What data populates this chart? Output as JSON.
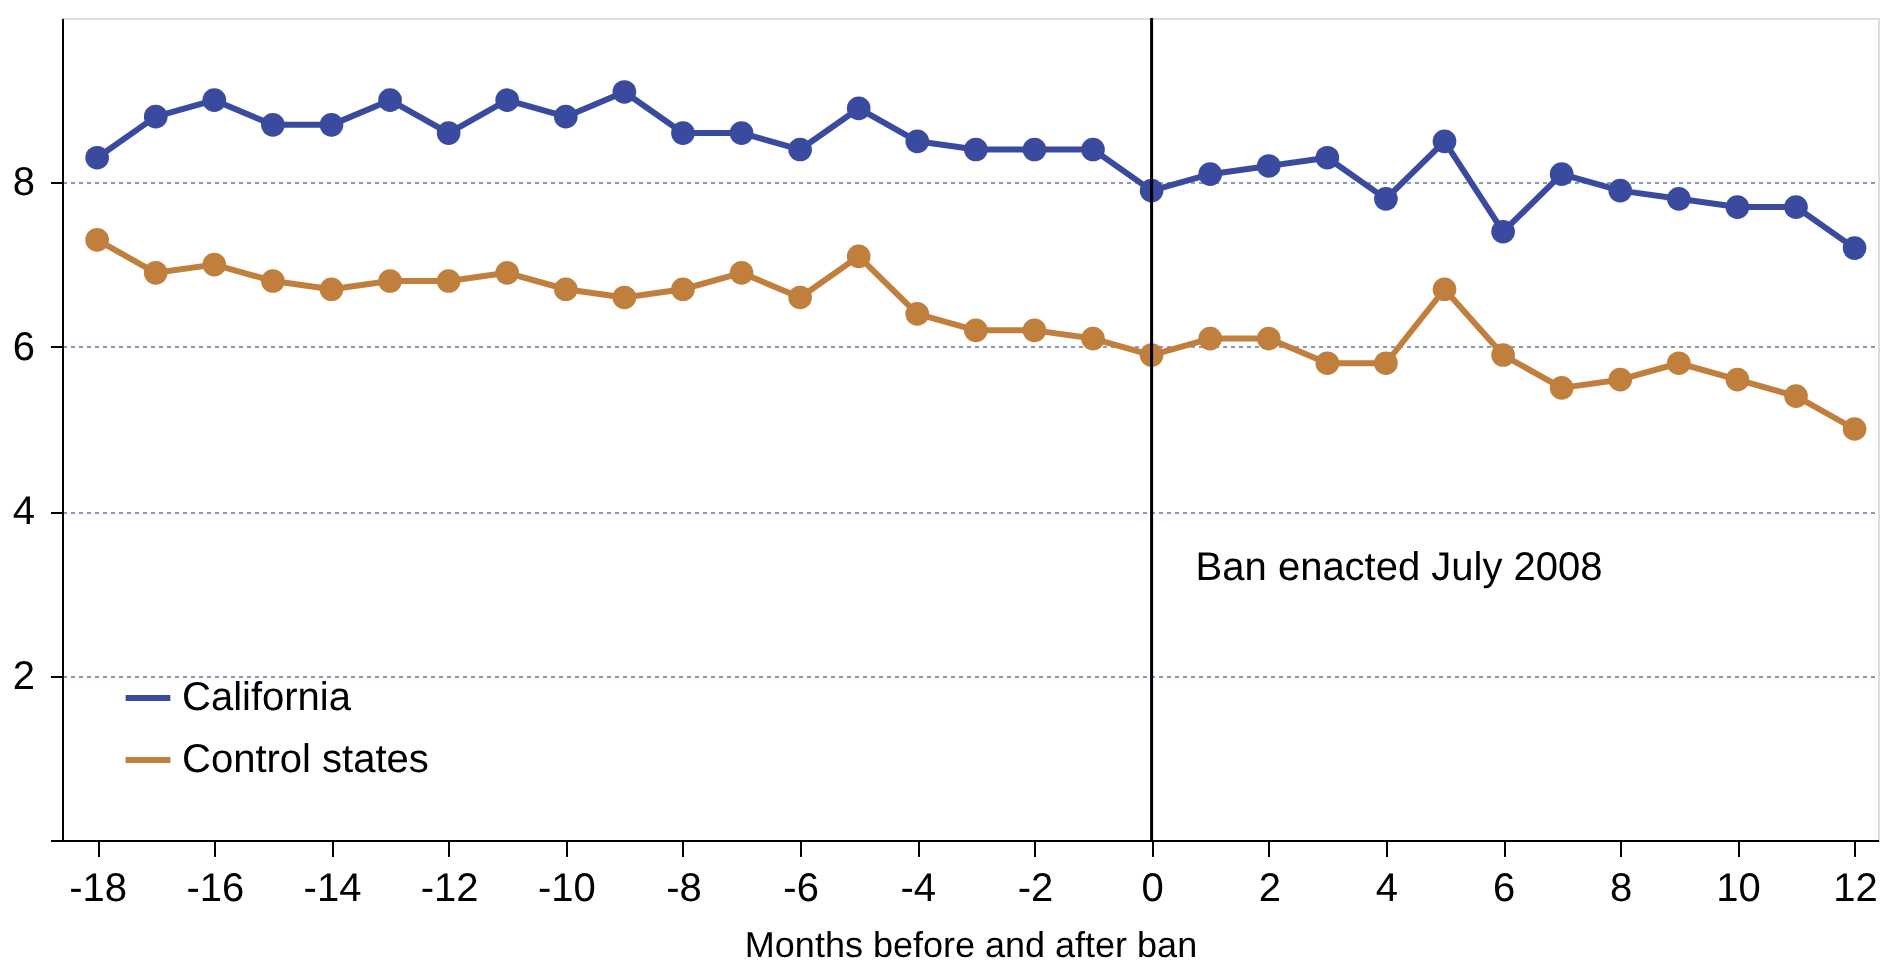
{
  "chart_data": {
    "type": "line",
    "xlabel": "Months before and after ban",
    "x": [
      -18,
      -17,
      -16,
      -15,
      -14,
      -13,
      -12,
      -11,
      -10,
      -9,
      -8,
      -7,
      -6,
      -5,
      -4,
      -3,
      -2,
      -1,
      0,
      1,
      2,
      3,
      4,
      5,
      6,
      7,
      8,
      9,
      10,
      11,
      12
    ],
    "series": [
      {
        "name": "California",
        "color": "#3a4a9e",
        "values": [
          8.3,
          8.8,
          9.0,
          8.7,
          8.7,
          9.0,
          8.6,
          9.0,
          8.8,
          9.1,
          8.6,
          8.6,
          8.4,
          8.9,
          8.5,
          8.4,
          8.4,
          8.4,
          7.9,
          8.1,
          8.2,
          8.3,
          7.8,
          8.5,
          7.4,
          8.1,
          7.9,
          7.8,
          7.7,
          7.7,
          7.2
        ]
      },
      {
        "name": "Control states",
        "color": "#c07f3c",
        "values": [
          7.3,
          6.9,
          7.0,
          6.8,
          6.7,
          6.8,
          6.8,
          6.9,
          6.7,
          6.6,
          6.7,
          6.9,
          6.6,
          7.1,
          6.4,
          6.2,
          6.2,
          6.1,
          5.9,
          6.1,
          6.1,
          5.8,
          5.8,
          6.7,
          5.9,
          5.5,
          5.6,
          5.8,
          5.6,
          5.4,
          5.0
        ]
      }
    ],
    "xlim": [
      -18.6,
      12.4
    ],
    "ylim": [
      0,
      10
    ],
    "xticks": [
      -18,
      -16,
      -14,
      -12,
      -10,
      -8,
      -6,
      -4,
      -2,
      0,
      2,
      4,
      6,
      8,
      10,
      12
    ],
    "yticks": [
      {
        "value": 0,
        "label": null
      },
      2,
      4,
      6,
      8
    ],
    "ref_lines": [
      {
        "axis": "x",
        "value": 0,
        "label": "Ban enacted July 2008",
        "color": "#000000"
      }
    ],
    "grid": "y",
    "legend": "bottom left",
    "marker": "circle",
    "line_style": "solid"
  }
}
